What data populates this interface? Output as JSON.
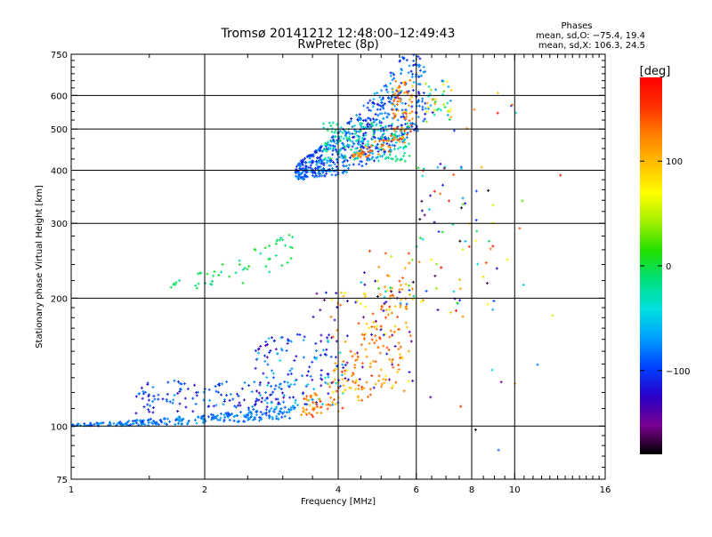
{
  "header": {
    "title": "Tromsø 20141212 12:48:00–12:49:43",
    "subtitle": "RwPretec (8p)"
  },
  "stats": {
    "heading": "Phases",
    "line_o": "mean, sd,O: −75.4, 19.4",
    "line_x": "mean, sd,X: 106.3, 24.5"
  },
  "colorbar": {
    "label": "[deg]",
    "ticks": [
      {
        "value": 100,
        "label": "100"
      },
      {
        "value": 0,
        "label": "0"
      },
      {
        "value": -100,
        "label": "−100"
      }
    ],
    "range": [
      -180,
      180
    ],
    "palette": [
      "#000000",
      "#7a0090",
      "#2a00c8",
      "#0040ff",
      "#00a0ff",
      "#00e0e0",
      "#00e080",
      "#20e000",
      "#a0f000",
      "#ffff00",
      "#ffc000",
      "#ff8000",
      "#ff3000",
      "#ff0000"
    ]
  },
  "chart_data": {
    "type": "scatter",
    "title": "Tromsø 20141212 12:48:00–12:49:43",
    "subtitle": "RwPretec (8p)",
    "xlabel": "Frequency [MHz]",
    "ylabel": "Stationary phase Virtual Height [km]",
    "x_scale": "log",
    "y_scale": "log",
    "xlim": [
      1,
      16
    ],
    "ylim": [
      75,
      750
    ],
    "x_ticks": [
      1,
      2,
      4,
      6,
      8,
      10,
      16
    ],
    "y_ticks": [
      75,
      100,
      200,
      300,
      400,
      500,
      600,
      750
    ],
    "x_gridlines": [
      2,
      4,
      6,
      8,
      10
    ],
    "y_gridlines": [
      100,
      200,
      300,
      400,
      500,
      600
    ],
    "grid": true,
    "color_variable": "phase [deg]",
    "clusters": [
      {
        "x": [
          1.0,
          3.2
        ],
        "y": [
          100,
          108
        ],
        "phase": [
          -100,
          -60
        ],
        "shape": "rising",
        "count": 260
      },
      {
        "x": [
          1.4,
          3.1
        ],
        "y": [
          107,
          128
        ],
        "phase": [
          -130,
          -70
        ],
        "shape": "band",
        "count": 130
      },
      {
        "x": [
          2.6,
          4.1
        ],
        "y": [
          112,
          165
        ],
        "phase": [
          -140,
          -40
        ],
        "shape": "band",
        "count": 140
      },
      {
        "x": [
          3.3,
          5.9
        ],
        "y": [
          105,
          190
        ],
        "phase": [
          90,
          160
        ],
        "shape": "rising",
        "count": 170
      },
      {
        "x": [
          3.8,
          5.8
        ],
        "y": [
          120,
          210
        ],
        "phase": [
          60,
          140
        ],
        "shape": "band",
        "count": 60
      },
      {
        "x": [
          3.5,
          5.9
        ],
        "y": [
          120,
          210
        ],
        "phase": [
          -160,
          -110
        ],
        "shape": "band",
        "count": 45
      },
      {
        "x": [
          1.6,
          3.2
        ],
        "y": [
          208,
          262
        ],
        "phase": [
          -20,
          10
        ],
        "shape": "rising",
        "count": 55
      },
      {
        "x": [
          3.2,
          6.3
        ],
        "y": [
          380,
          660
        ],
        "phase": [
          -120,
          -60
        ],
        "shape": "rising",
        "count": 650
      },
      {
        "x": [
          3.7,
          5.8
        ],
        "y": [
          420,
          520
        ],
        "phase": [
          -50,
          0
        ],
        "shape": "band",
        "count": 150
      },
      {
        "x": [
          4.3,
          5.9
        ],
        "y": [
          428,
          510
        ],
        "phase": [
          100,
          150
        ],
        "shape": "rising",
        "count": 70
      },
      {
        "x": [
          5.3,
          5.9
        ],
        "y": [
          520,
          660
        ],
        "phase": [
          90,
          150
        ],
        "shape": "band",
        "count": 50
      },
      {
        "x": [
          6.3,
          7.2
        ],
        "y": [
          520,
          650
        ],
        "phase": [
          -100,
          120
        ],
        "shape": "band",
        "count": 40
      },
      {
        "x": [
          6.0,
          9.0
        ],
        "y": [
          180,
          420
        ],
        "phase": [
          -180,
          180
        ],
        "shape": "band",
        "count": 70
      },
      {
        "x": [
          4.5,
          6.0
        ],
        "y": [
          190,
          260
        ],
        "phase": [
          -180,
          180
        ],
        "shape": "band",
        "count": 30
      },
      {
        "x": [
          6.0,
          13.0
        ],
        "y": [
          78,
          640
        ],
        "phase": [
          -180,
          180
        ],
        "shape": "band",
        "count": 30
      }
    ]
  }
}
